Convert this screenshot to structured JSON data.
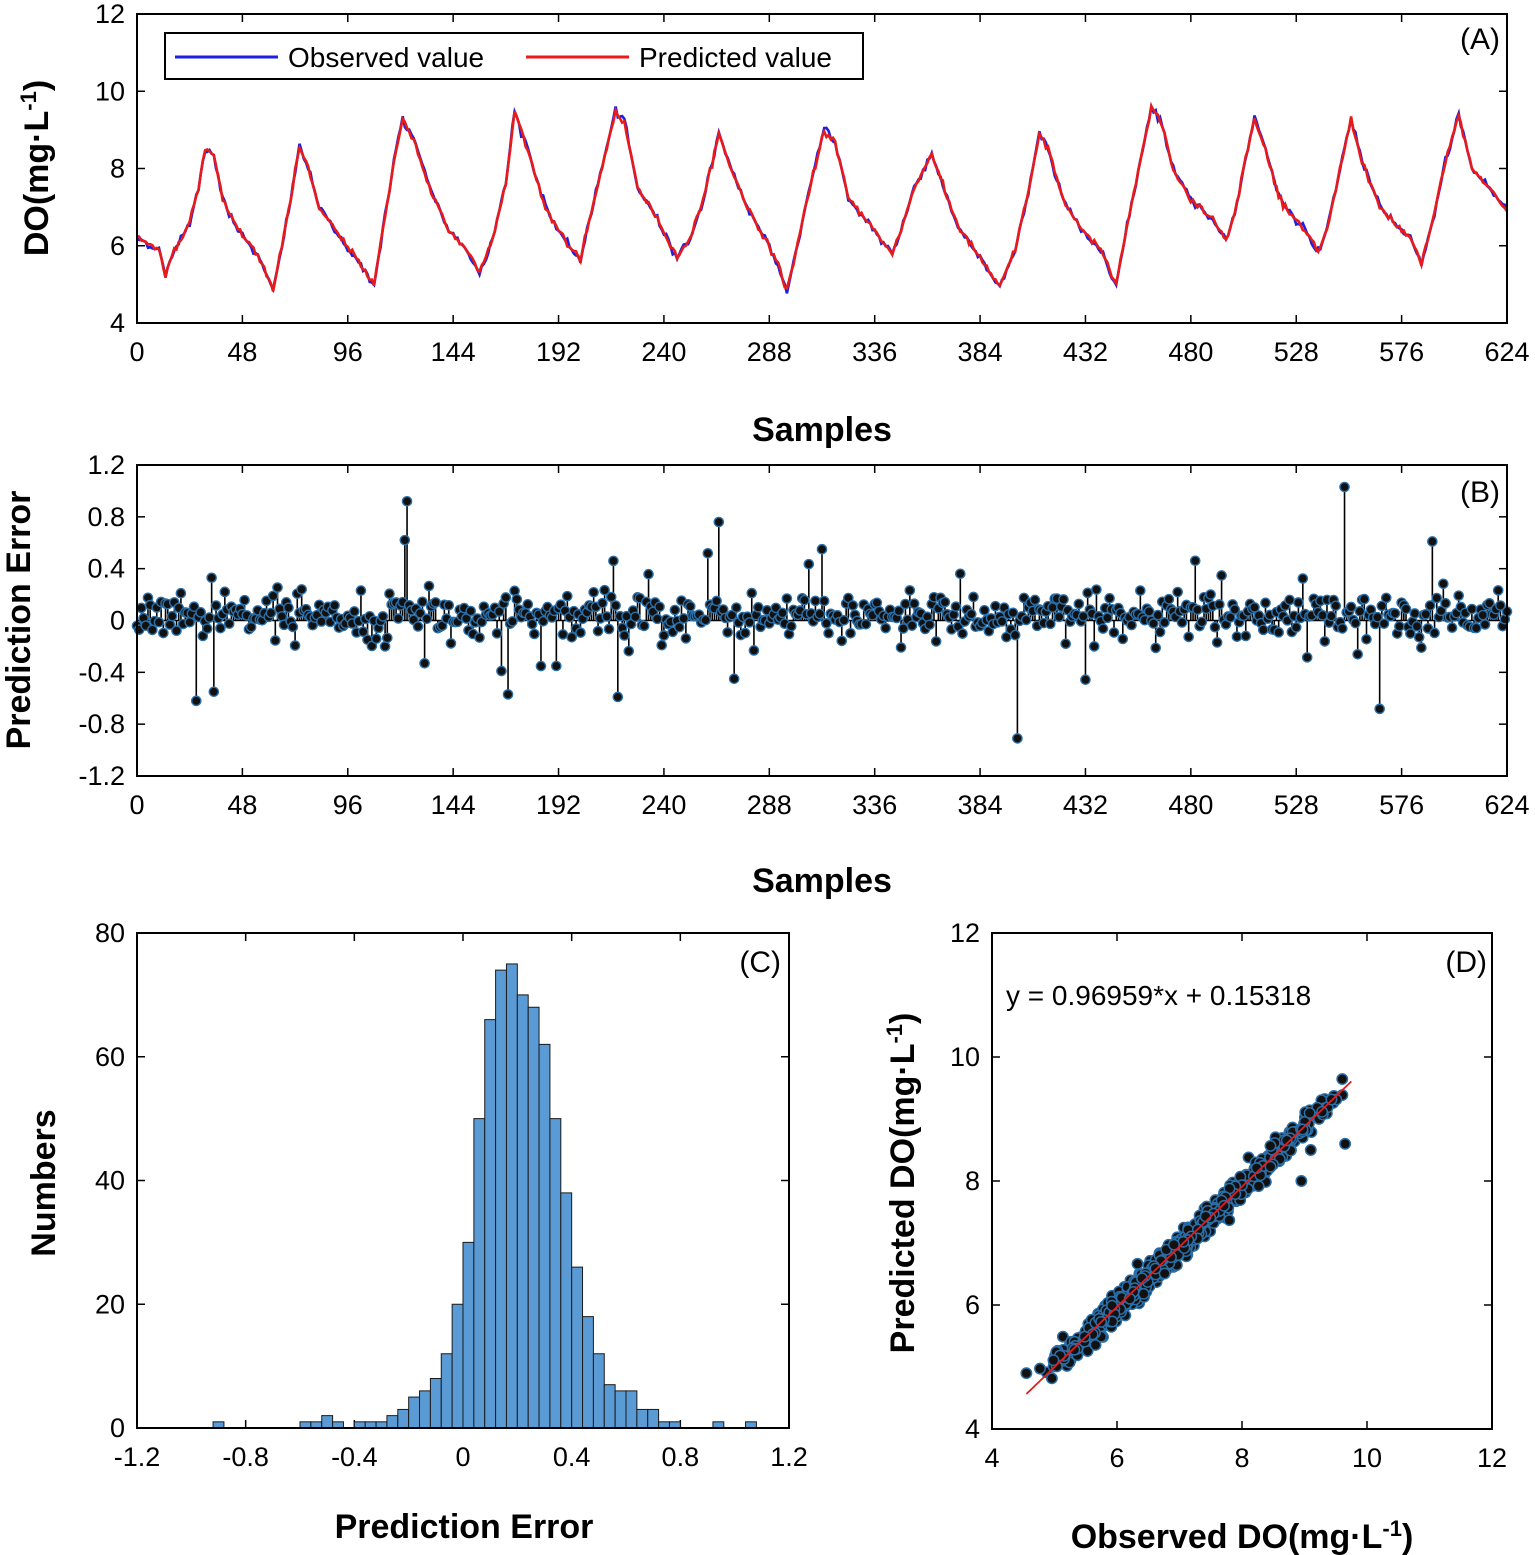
{
  "figure_title": "",
  "chart_data": [
    {
      "panel": "(A)",
      "type": "line",
      "xlabel": "Samples",
      "ylabel": "DO(mg·L",
      "ylabel_sup": "-1",
      "ylabel_suffix": ")",
      "xlim": [
        0,
        624
      ],
      "ylim": [
        4,
        12
      ],
      "xticks": [
        0,
        48,
        96,
        144,
        192,
        240,
        288,
        336,
        384,
        432,
        480,
        528,
        576,
        624
      ],
      "yticks": [
        4,
        6,
        8,
        10,
        12
      ],
      "legend": {
        "position": "top-left",
        "entries": [
          "Observed value",
          "Predicted value"
        ]
      },
      "colors": {
        "observed": "#1f1fe0",
        "predicted": "#e81a1a"
      },
      "anchors": [
        [
          0,
          6.2
        ],
        [
          10,
          5.9
        ],
        [
          13,
          5.2
        ],
        [
          17,
          5.9
        ],
        [
          24,
          6.6
        ],
        [
          28,
          7.5
        ],
        [
          31,
          8.5
        ],
        [
          35,
          8.4
        ],
        [
          39,
          7.2
        ],
        [
          44,
          6.6
        ],
        [
          52,
          6.0
        ],
        [
          58,
          5.4
        ],
        [
          62,
          4.8
        ],
        [
          66,
          6.0
        ],
        [
          70,
          7.2
        ],
        [
          74,
          8.6
        ],
        [
          78,
          8.0
        ],
        [
          83,
          7.0
        ],
        [
          90,
          6.4
        ],
        [
          98,
          5.8
        ],
        [
          108,
          5.0
        ],
        [
          112,
          6.4
        ],
        [
          117,
          8.2
        ],
        [
          121,
          9.3
        ],
        [
          127,
          8.6
        ],
        [
          134,
          7.4
        ],
        [
          142,
          6.4
        ],
        [
          150,
          5.9
        ],
        [
          156,
          5.3
        ],
        [
          162,
          6.2
        ],
        [
          168,
          7.6
        ],
        [
          172,
          9.5
        ],
        [
          178,
          8.5
        ],
        [
          186,
          7.0
        ],
        [
          194,
          6.2
        ],
        [
          202,
          5.6
        ],
        [
          204,
          6.2
        ],
        [
          210,
          7.6
        ],
        [
          218,
          9.5
        ],
        [
          222,
          9.2
        ],
        [
          228,
          7.5
        ],
        [
          236,
          6.8
        ],
        [
          246,
          5.7
        ],
        [
          252,
          6.2
        ],
        [
          258,
          7.2
        ],
        [
          265,
          8.9
        ],
        [
          272,
          7.8
        ],
        [
          278,
          7.0
        ],
        [
          285,
          6.3
        ],
        [
          292,
          5.5
        ],
        [
          296,
          4.8
        ],
        [
          300,
          5.8
        ],
        [
          306,
          7.4
        ],
        [
          313,
          9.0
        ],
        [
          318,
          8.7
        ],
        [
          324,
          7.2
        ],
        [
          332,
          6.7
        ],
        [
          338,
          6.2
        ],
        [
          344,
          5.8
        ],
        [
          348,
          6.4
        ],
        [
          354,
          7.5
        ],
        [
          362,
          8.4
        ],
        [
          368,
          7.4
        ],
        [
          374,
          6.5
        ],
        [
          380,
          6.0
        ],
        [
          386,
          5.5
        ],
        [
          393,
          4.9
        ],
        [
          400,
          5.9
        ],
        [
          406,
          7.4
        ],
        [
          411,
          8.9
        ],
        [
          415,
          8.5
        ],
        [
          422,
          7.2
        ],
        [
          430,
          6.4
        ],
        [
          440,
          5.8
        ],
        [
          446,
          5.0
        ],
        [
          452,
          6.8
        ],
        [
          458,
          8.5
        ],
        [
          462,
          9.6
        ],
        [
          466,
          9.3
        ],
        [
          472,
          8.0
        ],
        [
          480,
          7.2
        ],
        [
          488,
          6.8
        ],
        [
          496,
          6.2
        ],
        [
          500,
          6.8
        ],
        [
          505,
          8.3
        ],
        [
          509,
          9.3
        ],
        [
          514,
          8.5
        ],
        [
          520,
          7.3
        ],
        [
          526,
          6.8
        ],
        [
          532,
          6.4
        ],
        [
          538,
          5.8
        ],
        [
          542,
          6.4
        ],
        [
          548,
          8.0
        ],
        [
          553,
          9.3
        ],
        [
          558,
          8.2
        ],
        [
          566,
          7.0
        ],
        [
          574,
          6.5
        ],
        [
          580,
          6.2
        ],
        [
          585,
          5.5
        ],
        [
          590,
          6.6
        ],
        [
          596,
          8.2
        ],
        [
          602,
          9.4
        ],
        [
          608,
          8.0
        ],
        [
          616,
          7.5
        ],
        [
          624,
          6.9
        ]
      ]
    },
    {
      "panel": "(B)",
      "type": "stem",
      "xlabel": "Samples",
      "ylabel": "Prediction Error",
      "xlim": [
        0,
        624
      ],
      "ylim": [
        -1.2,
        1.2
      ],
      "xticks": [
        0,
        48,
        96,
        144,
        192,
        240,
        288,
        336,
        384,
        432,
        480,
        528,
        576,
        624
      ],
      "yticks": [
        1.2,
        0.8,
        0.4,
        0,
        -0.4,
        -0.8,
        -1.2
      ],
      "yticklabels": [
        "1.2",
        "0.8",
        "0.4",
        "0",
        "-0.4",
        "-0.8",
        "-1.2"
      ],
      "marker_color": "#2a6fa8",
      "notable_points": [
        [
          27,
          -0.62
        ],
        [
          35,
          -0.55
        ],
        [
          34,
          0.33
        ],
        [
          123,
          0.92
        ],
        [
          122,
          0.62
        ],
        [
          131,
          -0.33
        ],
        [
          169,
          -0.57
        ],
        [
          217,
          0.46
        ],
        [
          219,
          -0.59
        ],
        [
          265,
          0.76
        ],
        [
          272,
          -0.45
        ],
        [
          312,
          0.55
        ],
        [
          401,
          -0.91
        ],
        [
          550,
          1.03
        ],
        [
          590,
          0.61
        ],
        [
          585,
          -0.21
        ]
      ]
    },
    {
      "panel": "(C)",
      "type": "bar",
      "xlabel": "Prediction Error",
      "ylabel": "Numbers",
      "xlim": [
        -1.2,
        1.2
      ],
      "ylim": [
        0,
        80
      ],
      "xticks": [
        -1.2,
        -0.8,
        -0.4,
        0,
        0.4,
        0.8,
        1.2
      ],
      "xticklabels": [
        "-1.2",
        "-0.8",
        "-0.4",
        "0",
        "0.4",
        "0.8",
        "1.2"
      ],
      "yticks": [
        0,
        20,
        40,
        60,
        80
      ],
      "bar_color": "#5b9bd5",
      "bin_start": -0.92,
      "bin_width": 0.04,
      "values": [
        1,
        0,
        0,
        0,
        0,
        0,
        0,
        0,
        1,
        1,
        2,
        1,
        0,
        1,
        1,
        1,
        2,
        3,
        5,
        6,
        8,
        12,
        20,
        30,
        50,
        66,
        74,
        75,
        70,
        68,
        62,
        50,
        38,
        26,
        18,
        12,
        7,
        6,
        6,
        3,
        3,
        1,
        1,
        0,
        0,
        0,
        1,
        0,
        0,
        1
      ]
    },
    {
      "panel": "(D)",
      "type": "scatter",
      "xlabel": "Observed DO(mg·L",
      "xlabel_sup": "-1",
      "xlabel_suffix": ")",
      "ylabel": "Predicted DO(mg·L",
      "ylabel_sup": "-1",
      "ylabel_suffix": ")",
      "xlim": [
        4,
        12
      ],
      "ylim": [
        4,
        12
      ],
      "xticks": [
        4,
        6,
        8,
        10,
        12
      ],
      "yticks": [
        4,
        6,
        8,
        10,
        12
      ],
      "fit": {
        "slope": 0.96959,
        "intercept": 0.15318,
        "x_range": [
          4.55,
          9.75
        ],
        "color": "#e81a1a"
      },
      "equation_text": "y = 0.96959*x + 0.15318",
      "point_color": "#2a6fa8",
      "points": [
        [
          4.55,
          4.9
        ],
        [
          8.95,
          8.0
        ],
        [
          9.65,
          8.6
        ],
        [
          9.1,
          8.5
        ]
      ]
    }
  ]
}
